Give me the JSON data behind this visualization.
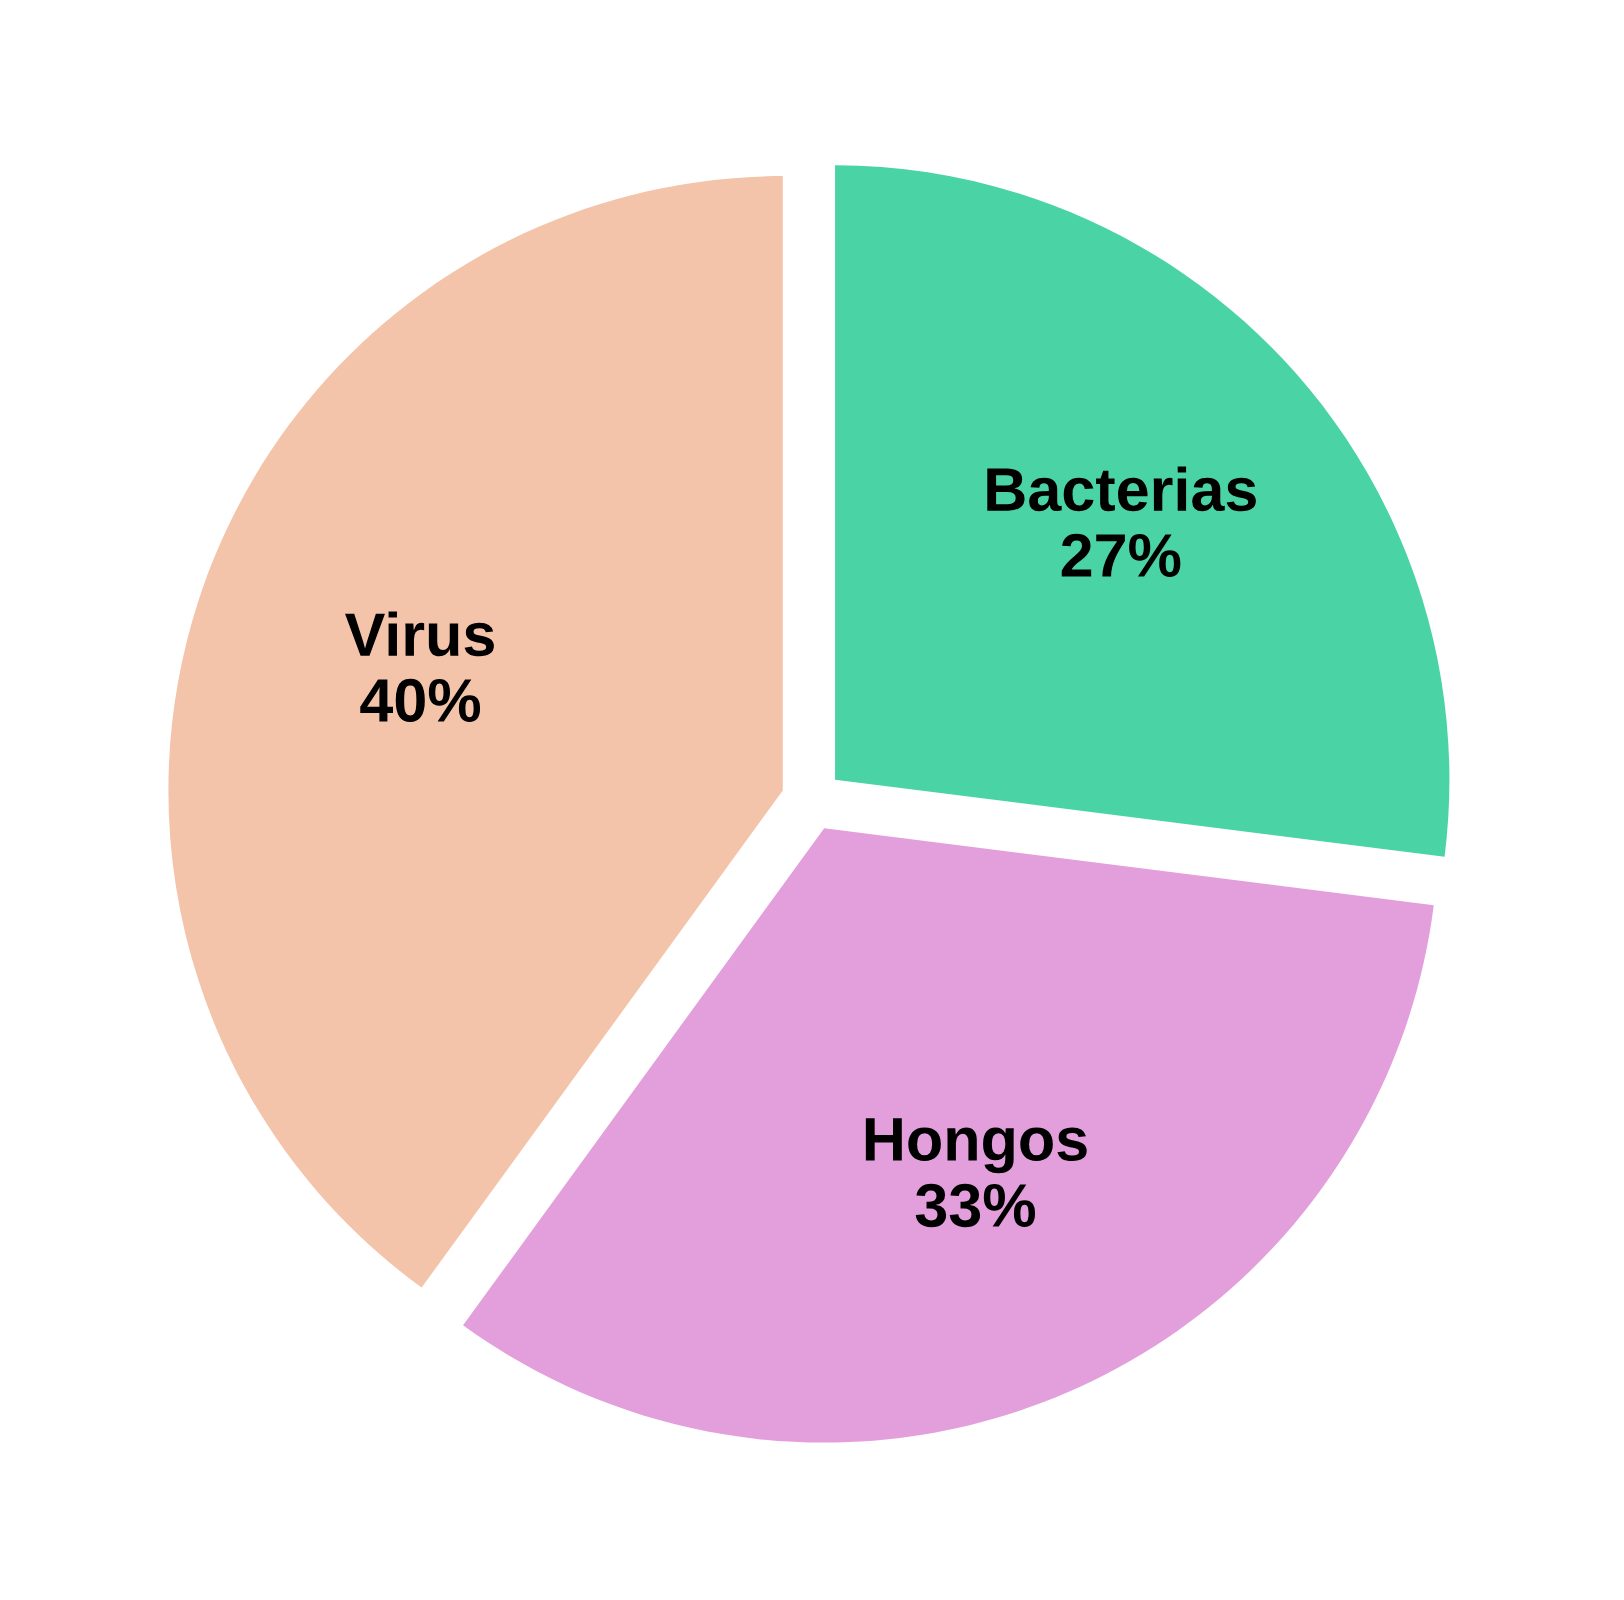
{
  "chart_data": {
    "type": "pie",
    "categories": [
      "Bacterias",
      "Hongos",
      "Virus"
    ],
    "values": [
      27,
      33,
      40
    ],
    "value_labels": [
      "27%",
      "33%",
      "40%"
    ],
    "colors": [
      "#4ad4a6",
      "#e39fdc",
      "#f4c4aa"
    ]
  }
}
